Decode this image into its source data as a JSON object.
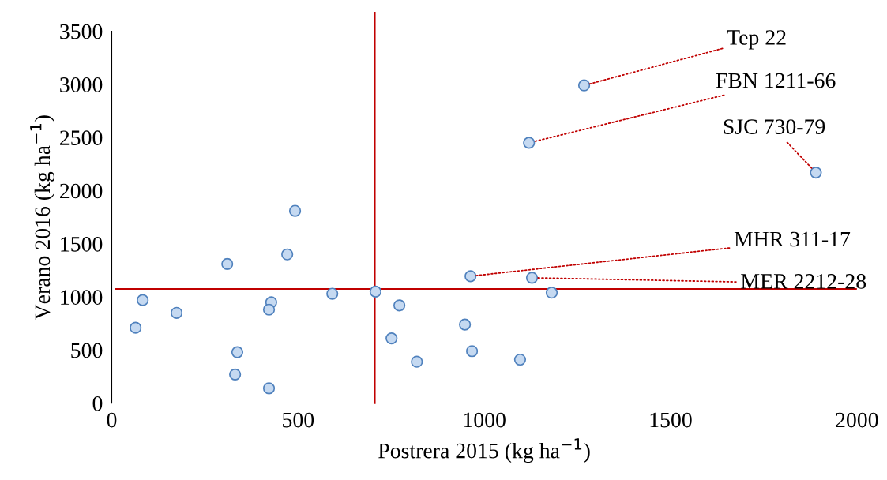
{
  "chart_data": {
    "type": "scatter",
    "xlabel": "Postrera 2015 (kg ha$^{−1}$)",
    "ylabel": "Verano 2016 (kg ha$^{−1}$)",
    "x": [
      1268,
      1120,
      1890,
      963,
      1128,
      1181,
      708,
      592,
      772,
      492,
      471,
      310,
      428,
      422,
      83,
      174,
      64,
      337,
      331,
      422,
      948,
      751,
      967,
      819,
      1096
    ],
    "series": [
      {
        "color": "#c5d9f1",
        "values": [
          2990,
          2450,
          2170,
          1195,
          1180,
          1040,
          1050,
          1030,
          920,
          1810,
          1400,
          1310,
          950,
          880,
          970,
          850,
          710,
          480,
          270,
          140,
          740,
          610,
          490,
          390,
          410
        ]
      }
    ],
    "marker": "circle",
    "xlim": [
      0,
      2000
    ],
    "xticks": [
      0,
      500,
      1000,
      1500,
      2000
    ],
    "ylim": [
      0,
      3500
    ],
    "yticks": [
      0,
      500,
      1000,
      1500,
      2000,
      2500,
      3000,
      3500
    ],
    "grid": false,
    "ref_lines": [
      {
        "axis": "x",
        "value": 706,
        "color": "#c00000"
      },
      {
        "axis": "y",
        "value": 1075,
        "color": "#c00000"
      }
    ],
    "annotations": [
      {
        "text": "Tep 22",
        "x": 1268,
        "y": 2990
      },
      {
        "text": "FBN 1211-66",
        "x": 1120,
        "y": 2450
      },
      {
        "text": "SJC 730-79",
        "x": 1890,
        "y": 2170
      },
      {
        "text": "MHR 311-17",
        "x": 963,
        "y": 1195
      },
      {
        "text": "MER 2212-28",
        "x": 1128,
        "y": 1180
      }
    ]
  }
}
